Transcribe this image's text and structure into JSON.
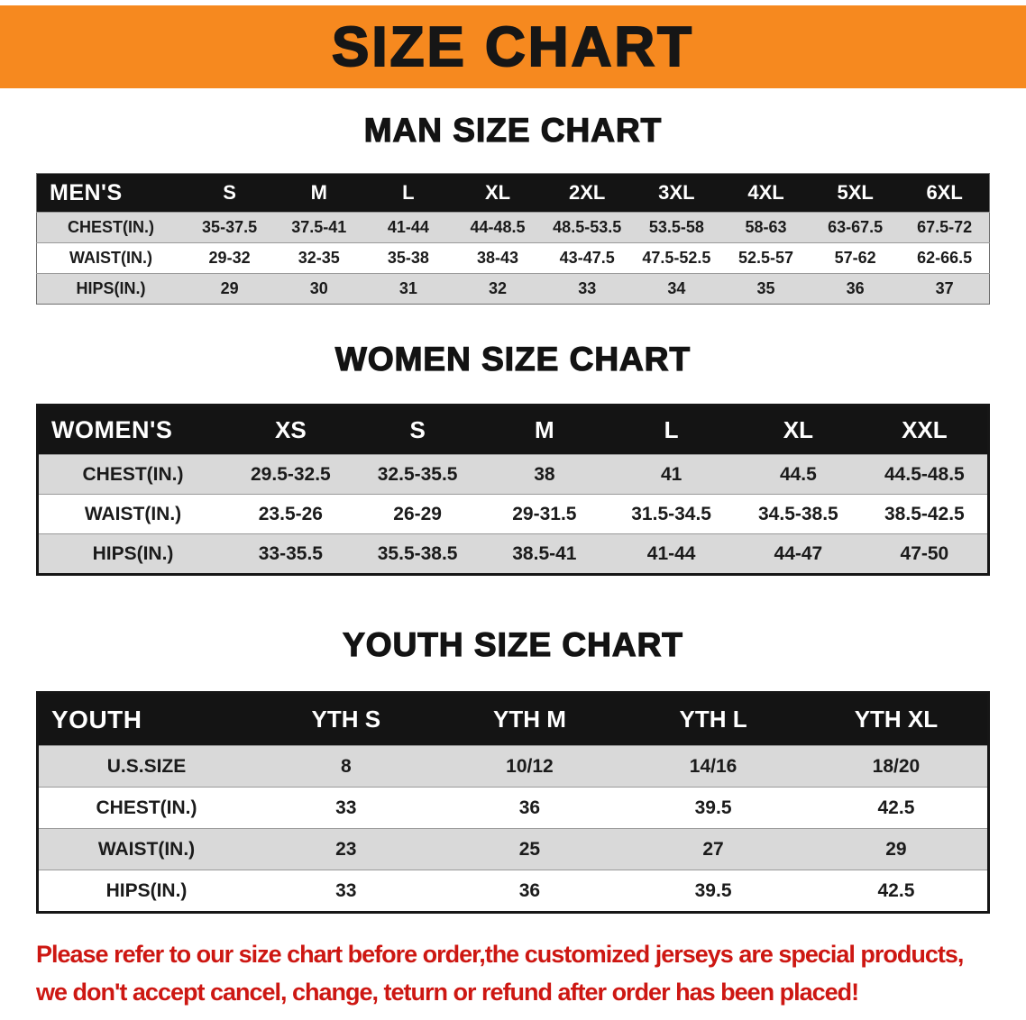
{
  "banner": {
    "title": "SIZE CHART"
  },
  "sections": [
    {
      "id": "men",
      "heading": "MAN SIZE CHART",
      "corner_label": "MEN'S",
      "sizes": [
        "S",
        "M",
        "L",
        "XL",
        "2XL",
        "3XL",
        "4XL",
        "5XL",
        "6XL"
      ],
      "rows": [
        {
          "label": "CHEST(IN.)",
          "values": [
            "35-37.5",
            "37.5-41",
            "41-44",
            "44-48.5",
            "48.5-53.5",
            "53.5-58",
            "58-63",
            "63-67.5",
            "67.5-72"
          ]
        },
        {
          "label": "WAIST(IN.)",
          "values": [
            "29-32",
            "32-35",
            "35-38",
            "38-43",
            "43-47.5",
            "47.5-52.5",
            "52.5-57",
            "57-62",
            "62-66.5"
          ]
        },
        {
          "label": "HIPS(IN.)",
          "values": [
            "29",
            "30",
            "31",
            "32",
            "33",
            "34",
            "35",
            "36",
            "37"
          ]
        }
      ]
    },
    {
      "id": "women",
      "heading": "WOMEN SIZE CHART",
      "corner_label": "WOMEN'S",
      "sizes": [
        "XS",
        "S",
        "M",
        "L",
        "XL",
        "XXL"
      ],
      "rows": [
        {
          "label": "CHEST(IN.)",
          "values": [
            "29.5-32.5",
            "32.5-35.5",
            "38",
            "41",
            "44.5",
            "44.5-48.5"
          ]
        },
        {
          "label": "WAIST(IN.)",
          "values": [
            "23.5-26",
            "26-29",
            "29-31.5",
            "31.5-34.5",
            "34.5-38.5",
            "38.5-42.5"
          ]
        },
        {
          "label": "HIPS(IN.)",
          "values": [
            "33-35.5",
            "35.5-38.5",
            "38.5-41",
            "41-44",
            "44-47",
            "47-50"
          ]
        }
      ]
    },
    {
      "id": "youth",
      "heading": "YOUTH SIZE CHART",
      "corner_label": "YOUTH",
      "sizes": [
        "YTH S",
        "YTH M",
        "YTH L",
        "YTH XL"
      ],
      "rows": [
        {
          "label": "U.S.SIZE",
          "values": [
            "8",
            "10/12",
            "14/16",
            "18/20"
          ]
        },
        {
          "label": "CHEST(IN.)",
          "values": [
            "33",
            "36",
            "39.5",
            "42.5"
          ]
        },
        {
          "label": "WAIST(IN.)",
          "values": [
            "23",
            "25",
            "27",
            "29"
          ]
        },
        {
          "label": "HIPS(IN.)",
          "values": [
            "33",
            "36",
            "39.5",
            "42.5"
          ]
        }
      ]
    }
  ],
  "footer": {
    "line1": "Please refer to our size chart before order,the customized jerseys are special products,",
    "line2": "we don't accept cancel, change, teturn or refund after order has been placed!"
  },
  "colors": {
    "banner_bg": "#f6891f",
    "header_bg": "#141414",
    "stripe_bg": "#d9d9d9",
    "footer_text": "#cd1712"
  }
}
